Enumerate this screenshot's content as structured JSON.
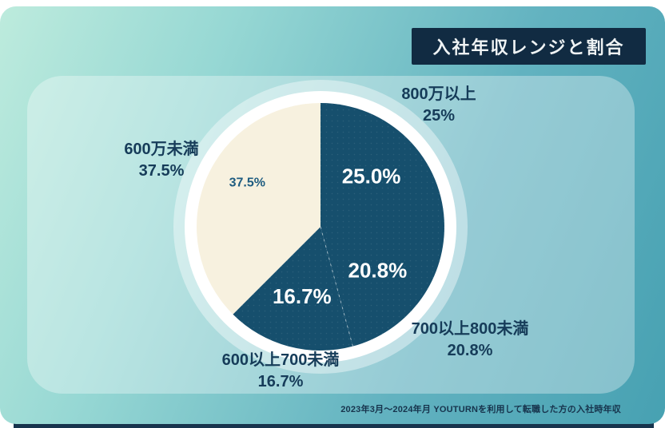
{
  "header": {
    "title": "入社年収レンジと割合"
  },
  "footer": {
    "note": "2023年3月～2024年月 YOUTURNを利用して転職した方の入社時年収"
  },
  "colors": {
    "accent_navy": "#164F6D",
    "cream": "#F7F1DF",
    "title_bg": "#112B42",
    "title_text": "#EFF3F4",
    "callout_text": "#163C59",
    "inner_cream_text": "#1E5C80",
    "bottom_bar": "#17344D"
  },
  "chart_data": {
    "type": "pie",
    "title": "入社年収レンジと割合",
    "start_angle_deg": 0,
    "direction": "clockwise",
    "radius": 155,
    "ring_radius": 170,
    "halo_radius": 184,
    "legend": "none",
    "slices": [
      {
        "label": "800万以上",
        "value": 25.0,
        "display": "25.0%",
        "callout": "25%",
        "color": "#164F6D",
        "text_color": "#FFFFFF",
        "text_size": 26,
        "label_r": 0.58,
        "texture": true
      },
      {
        "label": "700以上800未満",
        "value": 20.8,
        "display": "20.8%",
        "callout": "20.8%",
        "color": "#164F6D",
        "text_color": "#FFFFFF",
        "text_size": 26,
        "label_r": 0.58,
        "texture": true
      },
      {
        "label": "600以上700未満",
        "value": 16.7,
        "display": "16.7%",
        "callout": "16.7%",
        "color": "#164F6D",
        "text_color": "#FFFFFF",
        "text_size": 26,
        "label_r": 0.58,
        "texture": true
      },
      {
        "label": "600万未満",
        "value": 37.5,
        "display": "37.5%",
        "callout": "37.5%",
        "color": "#F7F1DF",
        "text_color": "#1E5C80",
        "text_size": 16,
        "label_r": 0.69,
        "label_angle": 301,
        "texture": false
      }
    ],
    "dashed_boundaries_after": [
      1
    ]
  }
}
